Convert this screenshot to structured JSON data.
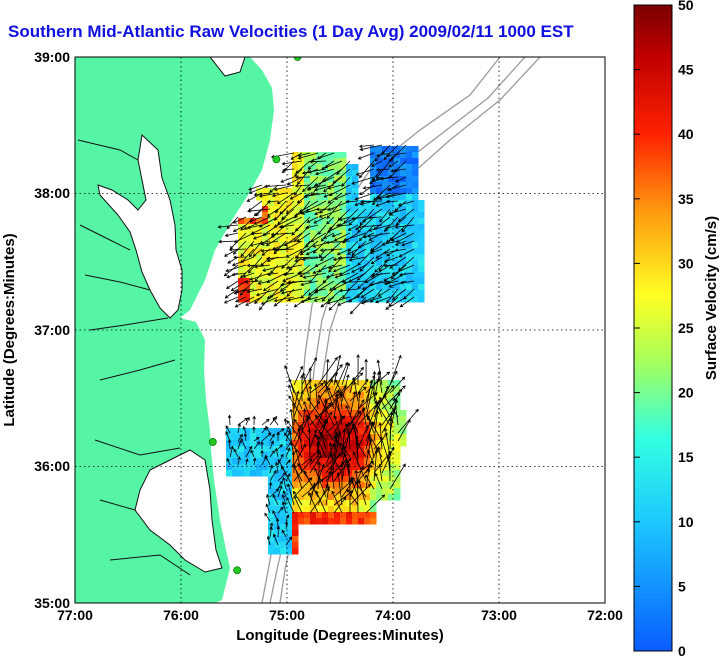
{
  "title": "Southern Mid-Atlantic Raw Velocities (1 Day Avg) 2009/02/11 1000 EST",
  "xlabel": "Longitude (Degrees:Minutes)",
  "ylabel": "Latitude (Degrees:Minutes)",
  "colorbar_label": "Surface Velocity (cm/s)",
  "x_ticks": [
    "77:00",
    "76:00",
    "75:00",
    "74:00",
    "73:00",
    "72:00"
  ],
  "y_ticks": [
    "39:00",
    "38:00",
    "37:00",
    "36:00",
    "35:00"
  ],
  "colorbar_ticks": [
    "0",
    "5",
    "10",
    "15",
    "20",
    "25",
    "30",
    "35",
    "40",
    "45",
    "50"
  ],
  "colors": {
    "land": "#55f5a5",
    "title": "#1010e0",
    "stations": "#22cc22"
  },
  "map": {
    "lon_range": [
      -77,
      -72
    ],
    "lat_range": [
      35,
      39
    ],
    "velocity_range_cm_s": [
      0,
      50
    ],
    "grid": "dotted",
    "stations": [
      {
        "lon": -74.9,
        "lat": 39.0
      },
      {
        "lon": -75.1,
        "lat": 38.25
      },
      {
        "lon": -75.7,
        "lat": 36.18
      },
      {
        "lon": -75.47,
        "lat": 35.24
      }
    ]
  }
}
